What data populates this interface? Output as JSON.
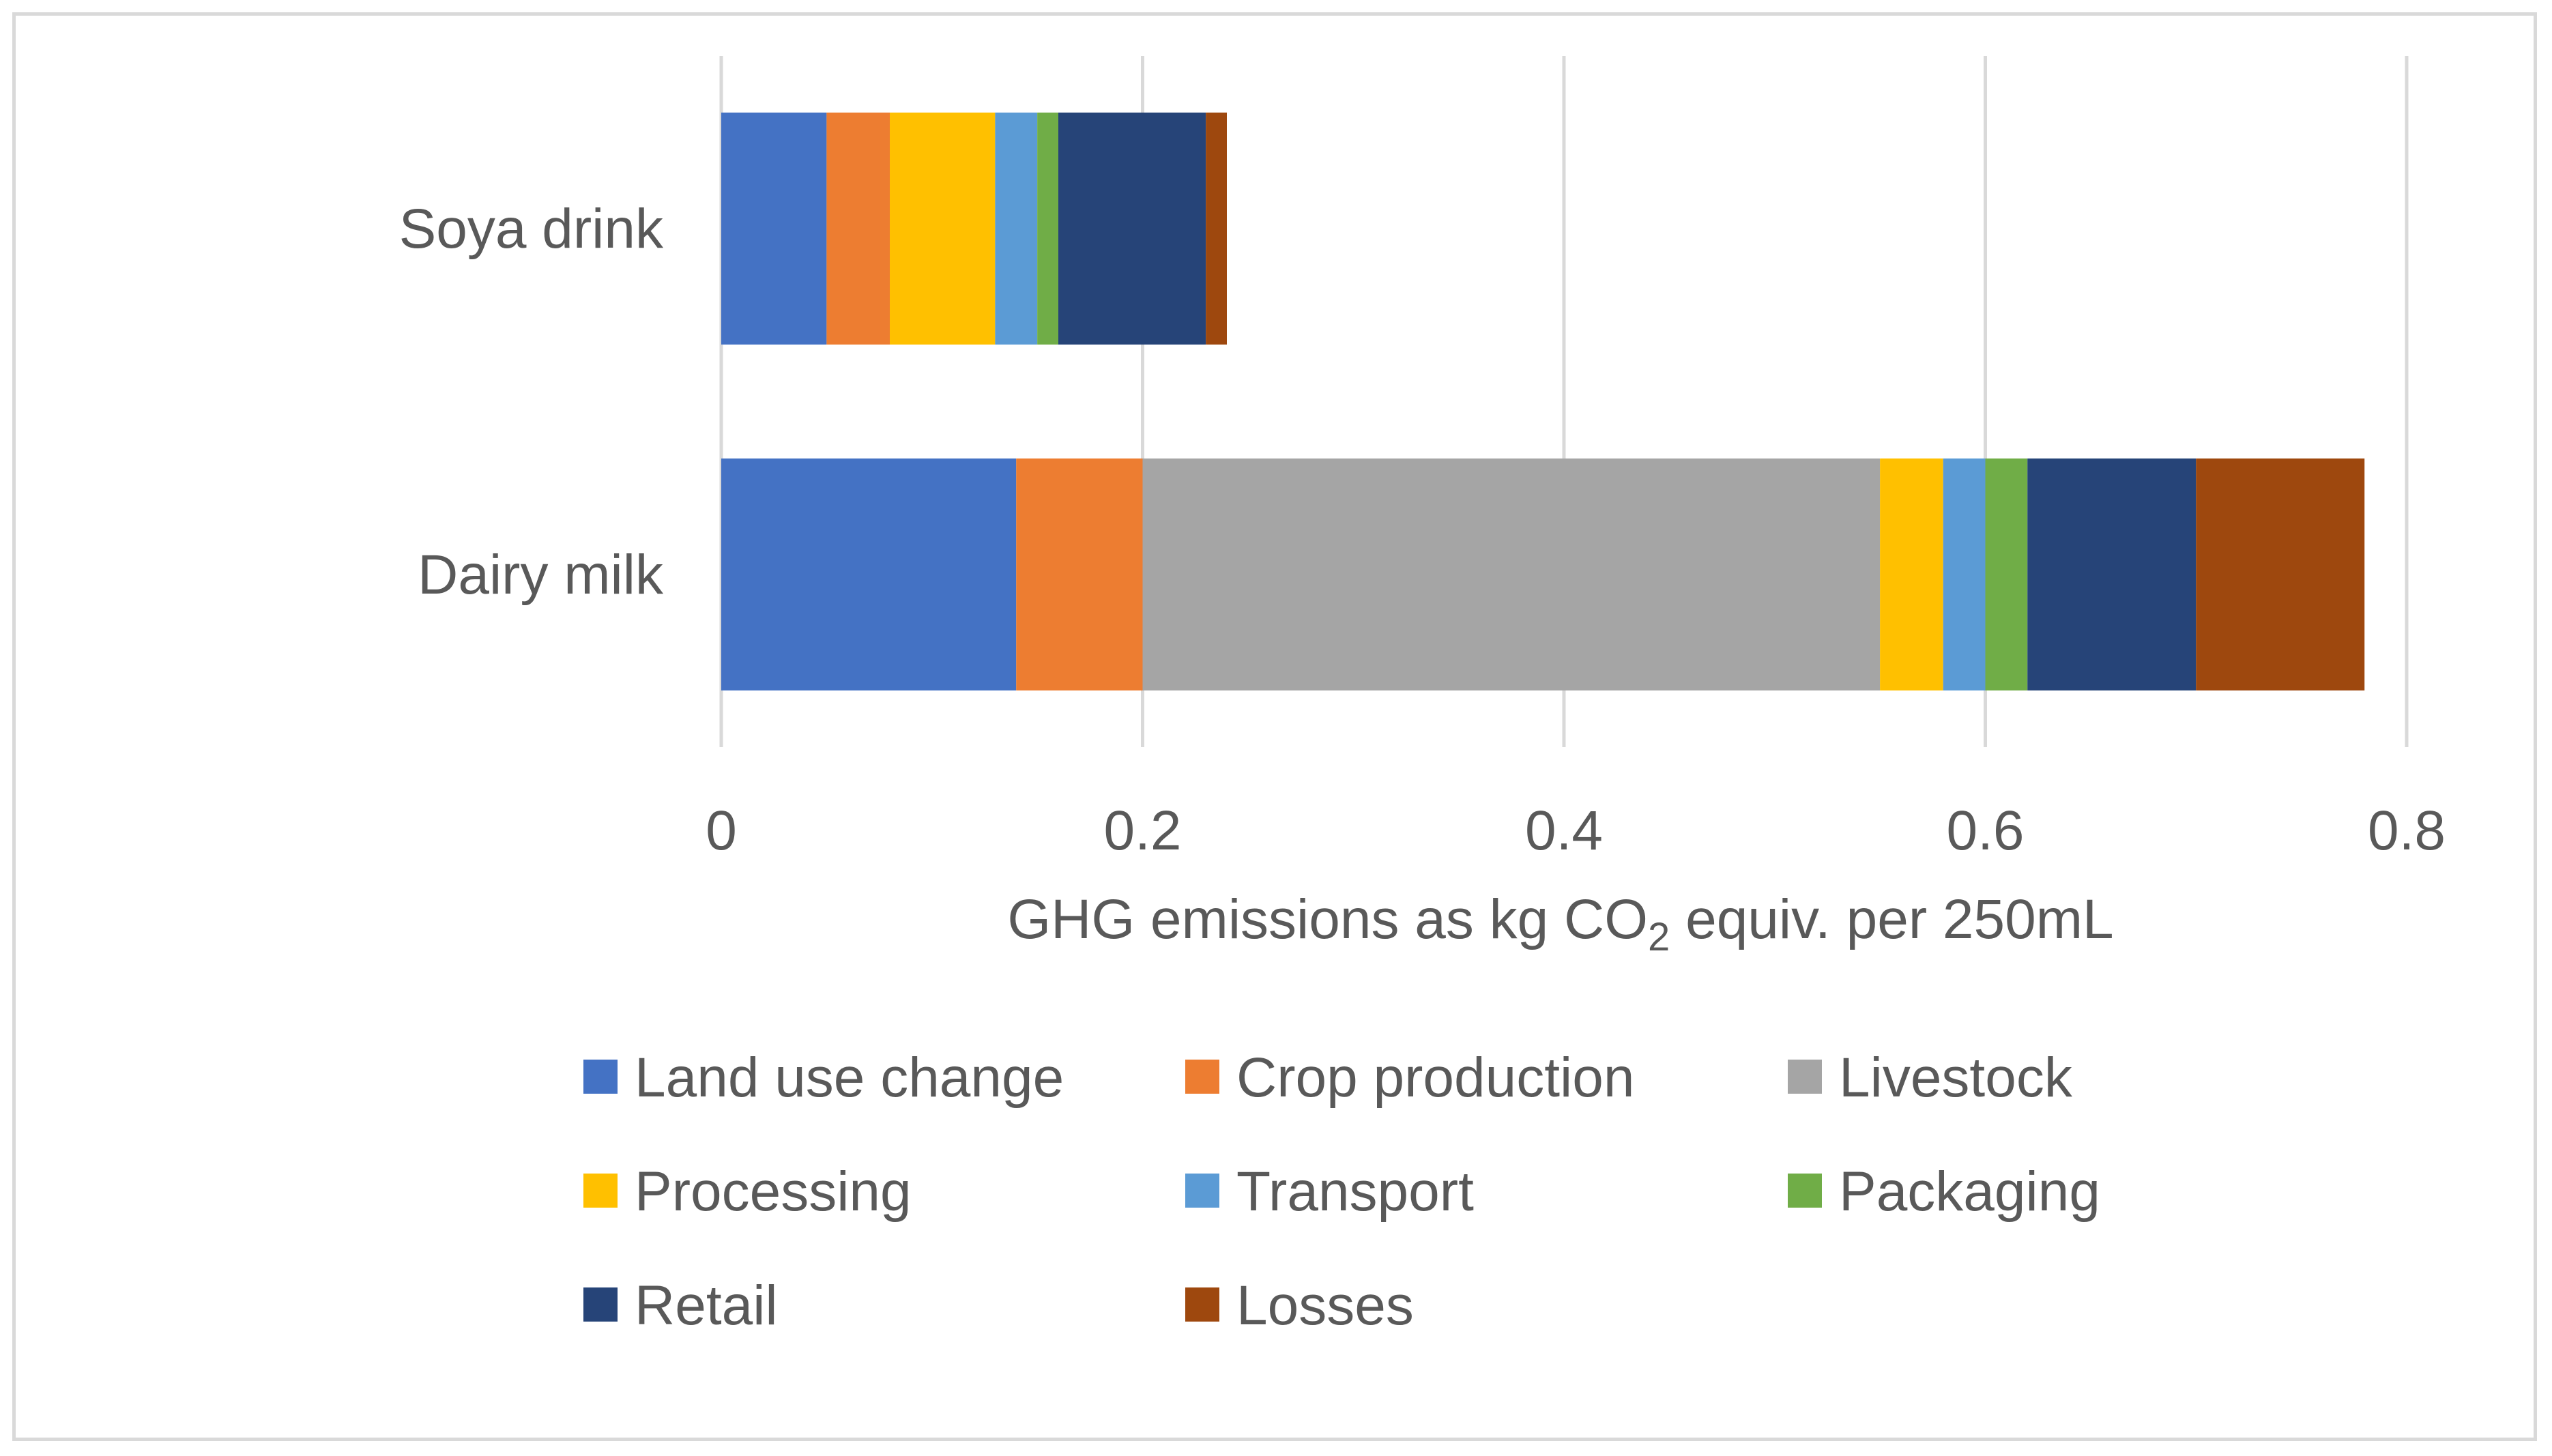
{
  "chart_data": {
    "type": "bar",
    "orientation": "horizontal",
    "stacked": true,
    "title": "",
    "categories": [
      "Soya drink",
      "Dairy milk"
    ],
    "series": [
      {
        "name": "Land use change",
        "color": "#4472C4",
        "values": [
          0.05,
          0.14
        ]
      },
      {
        "name": "Crop production",
        "color": "#ED7D31",
        "values": [
          0.03,
          0.06
        ]
      },
      {
        "name": "Livestock",
        "color": "#A5A5A5",
        "values": [
          0.0,
          0.35
        ]
      },
      {
        "name": "Processing",
        "color": "#FFC000",
        "values": [
          0.05,
          0.03
        ]
      },
      {
        "name": "Transport",
        "color": "#5B9BD5",
        "values": [
          0.02,
          0.02
        ]
      },
      {
        "name": "Packaging",
        "color": "#70AD47",
        "values": [
          0.01,
          0.02
        ]
      },
      {
        "name": "Retail",
        "color": "#264478",
        "values": [
          0.07,
          0.08
        ]
      },
      {
        "name": "Losses",
        "color": "#9E480E",
        "values": [
          0.01,
          0.08
        ]
      }
    ],
    "xlim": [
      0,
      0.8
    ],
    "xticks": [
      0,
      0.2,
      0.4,
      0.6,
      0.8
    ],
    "xtick_labels": [
      "0",
      "0.2",
      "0.4",
      "0.6",
      "0.8"
    ],
    "xlabel": {
      "before": "GHG emissions as kg CO",
      "subscript": "2",
      "after": " equiv. per 250mL"
    },
    "ylabel": "",
    "grid": "vertical",
    "legend_position": "bottom"
  }
}
